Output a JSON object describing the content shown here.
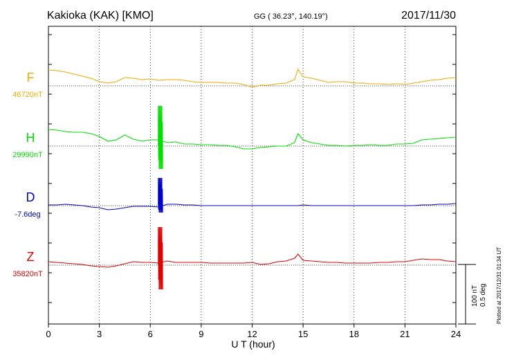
{
  "header": {
    "title": "Kakioka (KAK)  [KMO]",
    "coords": "GG ( 36.23°, 140.19°)",
    "date": "2017/11/30"
  },
  "side_note": "Plotted at 2017/12/31 01:34 UT",
  "scale_bar": {
    "line1": "100 nT",
    "line2": "0.5 deg"
  },
  "colors": {
    "F": "#f0aa00",
    "H": "#00e000",
    "D": "#0000cc",
    "Z": "#e00000",
    "axis": "#000000"
  },
  "chart_data": {
    "type": "line",
    "title": "Kakioka (KAK)  [KMO]",
    "xlabel": "U T (hour)",
    "ylabel": "",
    "xlim": [
      0,
      24
    ],
    "x_ticks": [
      "0",
      "3",
      "6",
      "9",
      "12",
      "15",
      "18",
      "21",
      "24"
    ],
    "grid": "dotted",
    "scale": "100 nT / 0.5 deg per division",
    "x": [
      0,
      0.5,
      1,
      1.5,
      2,
      2.5,
      3,
      3.5,
      4,
      4.5,
      5,
      5.5,
      6,
      6.5,
      7,
      7.5,
      8,
      8.5,
      9,
      9.5,
      10,
      10.5,
      11,
      11.5,
      12,
      12.5,
      13,
      13.5,
      14,
      14.5,
      14.7,
      15,
      15.5,
      16,
      16.5,
      17,
      17.5,
      18,
      18.5,
      19,
      19.5,
      20,
      20.5,
      21,
      21.5,
      22,
      22.5,
      23,
      23.5,
      24
    ],
    "series": [
      {
        "name": "F",
        "label": "F",
        "baseline": "46720nT",
        "color": "#f0aa00",
        "values": [
          23,
          22,
          20,
          17,
          14,
          11,
          6,
          4,
          6,
          12,
          11,
          9,
          10,
          8,
          9,
          9,
          8,
          6,
          5,
          5,
          5,
          4,
          4,
          2,
          -2,
          1,
          1,
          3,
          4,
          9,
          24,
          13,
          11,
          8,
          5,
          6,
          6,
          4,
          4,
          3,
          3,
          2,
          3,
          2,
          4,
          6,
          8,
          9,
          11,
          12
        ]
      },
      {
        "name": "H",
        "label": "H",
        "baseline": "29990nT",
        "color": "#00e000",
        "values": [
          24,
          23,
          21,
          20,
          20,
          18,
          14,
          7,
          9,
          16,
          10,
          7,
          9,
          9,
          5,
          6,
          3,
          3,
          2,
          2,
          1,
          1,
          -1,
          -4,
          -4,
          -2,
          -1,
          0,
          0,
          5,
          18,
          9,
          5,
          3,
          1,
          1,
          0,
          1,
          1,
          2,
          1,
          1,
          3,
          3,
          4,
          9,
          10,
          11,
          12,
          13
        ]
      },
      {
        "name": "D",
        "label": "D",
        "baseline": "-7.6deg",
        "color": "#0000cc",
        "values": [
          1,
          1,
          2,
          1,
          0,
          -2,
          -3,
          -6,
          -5,
          -3,
          -1,
          -1,
          -1,
          -2,
          2,
          2,
          1,
          1,
          0,
          0,
          0,
          0,
          0,
          0,
          0,
          0,
          0,
          0,
          0,
          0,
          0,
          1,
          0,
          0,
          0,
          0,
          0,
          0,
          0,
          0,
          0,
          0,
          0,
          0,
          0,
          1,
          1,
          2,
          2,
          3
        ]
      },
      {
        "name": "Z",
        "label": "Z",
        "baseline": "35820nT",
        "color": "#e00000",
        "values": [
          5,
          4,
          3,
          2,
          1,
          -1,
          -2,
          -3,
          -1,
          2,
          5,
          4,
          4,
          3,
          6,
          4,
          4,
          4,
          4,
          3,
          3,
          3,
          3,
          3,
          4,
          1,
          2,
          5,
          6,
          10,
          16,
          7,
          6,
          5,
          4,
          4,
          3,
          3,
          3,
          3,
          4,
          4,
          5,
          5,
          7,
          9,
          8,
          8,
          6,
          5
        ]
      }
    ],
    "annotations": [
      {
        "series": "H",
        "x": 6.6,
        "note": "spike",
        "min": -33,
        "max": 58
      },
      {
        "series": "D",
        "x": 6.6,
        "note": "spike",
        "min": -10,
        "max": 40
      },
      {
        "series": "Z",
        "x": 6.6,
        "note": "spike",
        "min": -35,
        "max": 55
      }
    ]
  }
}
